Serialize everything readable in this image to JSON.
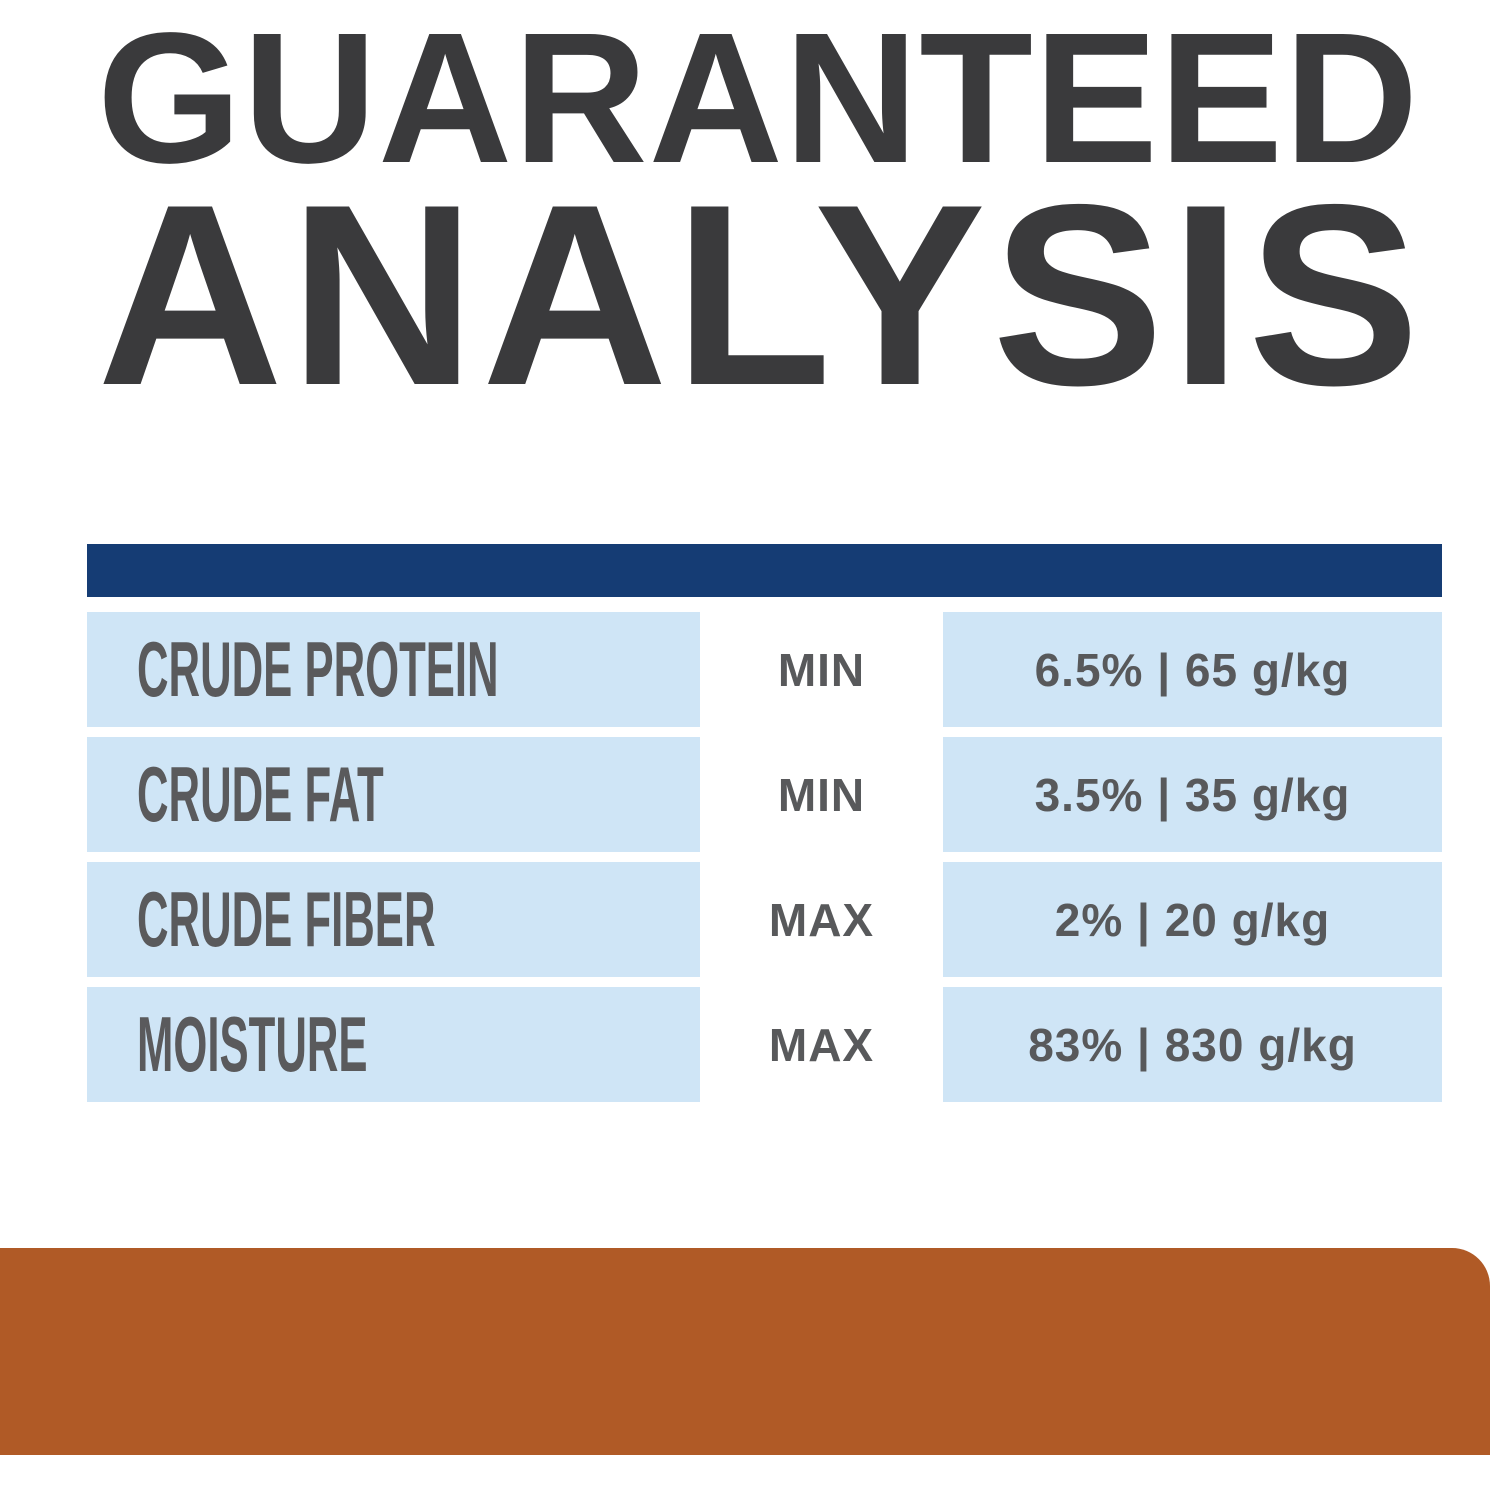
{
  "title": {
    "line1": "GUARANTEED",
    "line2": "ANALYSIS"
  },
  "analysis_table": {
    "rows": [
      {
        "nutrient": "CRUDE PROTEIN",
        "qualifier": "MIN",
        "value": "6.5% | 65 g/kg"
      },
      {
        "nutrient": "CRUDE FAT",
        "qualifier": "MIN",
        "value": "3.5% | 35 g/kg"
      },
      {
        "nutrient": "CRUDE FIBER",
        "qualifier": "MAX",
        "value": "2% | 20 g/kg"
      },
      {
        "nutrient": "MOISTURE",
        "qualifier": "MAX",
        "value": "83% | 830 g/kg"
      }
    ]
  },
  "colors": {
    "title_text": "#3a3a3c",
    "label_text": "#5a5a5c",
    "value_text": "#58595b",
    "header_bar": "#153c74",
    "row_background": "#cfe5f6",
    "footer_bar": "#b05a26",
    "page_background": "#ffffff"
  }
}
